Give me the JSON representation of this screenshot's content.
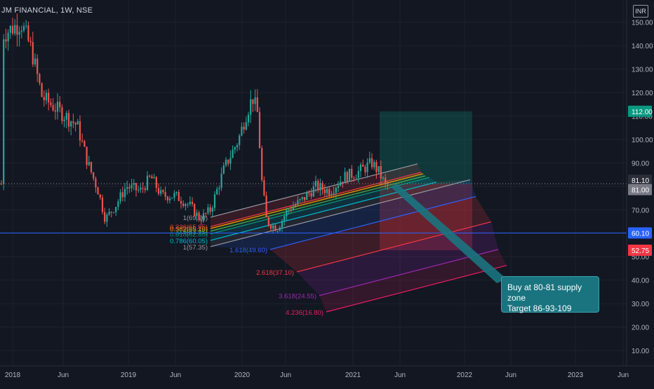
{
  "header": {
    "symbol": "JM FINANCIAL, 1W, NSE",
    "currency": "INR"
  },
  "chart_data": {
    "type": "candlestick",
    "y_ticks": [
      "150.00",
      "140.00",
      "130.00",
      "120.00",
      "110.00",
      "100.00",
      "90.00",
      "80.00",
      "70.00",
      "60.00",
      "50.00",
      "40.00",
      "30.00",
      "20.00",
      "10.00"
    ],
    "x_ticks": [
      "2018",
      "Jun",
      "2019",
      "Jun",
      "2020",
      "Jun",
      "2021",
      "Jun",
      "2022",
      "Jun",
      "2023",
      "Jun"
    ],
    "ylim": [
      4.3,
      158.5
    ],
    "grid": true,
    "price_labels": [
      {
        "value": 112.0,
        "text": "112.00",
        "color": "#089981"
      },
      {
        "value": 81.1,
        "text": "81.10",
        "color": "#2a2e39"
      },
      {
        "value": 81.0,
        "text": "81.00",
        "color": "#787b86"
      },
      {
        "value": 60.1,
        "text": "60.10",
        "color": "#2962ff"
      },
      {
        "value": 52.75,
        "text": "52.75",
        "color": "#f23645"
      }
    ],
    "horizontal_line": 60.1,
    "fib_levels": [
      {
        "label": "1(69.90)",
        "value": 69.9,
        "color": "#9598a1"
      },
      {
        "label": "0.236(65.95)",
        "value": 65.95,
        "color": "#f23645"
      },
      {
        "label": "0.382(65.10)",
        "value": 65.1,
        "color": "#ff9800"
      },
      {
        "label": "0.5(63.95)",
        "value": 63.95,
        "color": "#4caf50"
      },
      {
        "label": "0.618(62.80)",
        "value": 62.8,
        "color": "#089981"
      },
      {
        "label": "0.786(60.05)",
        "value": 60.05,
        "color": "#00bcd4"
      },
      {
        "label": "1(57.35)",
        "value": 57.35,
        "color": "#9598a1"
      },
      {
        "label": "1.618(49.60)",
        "value": 49.6,
        "color": "#2962ff"
      },
      {
        "label": "2.618(37.10)",
        "value": 37.1,
        "color": "#f23645"
      },
      {
        "label": "3.618(24.55)",
        "value": 24.55,
        "color": "#9c27b0"
      },
      {
        "label": "4.236(16.80)",
        "value": 16.8,
        "color": "#e91e63"
      }
    ],
    "trade": {
      "entry": 81.0,
      "target": 112.0,
      "stop": 52.75
    }
  },
  "annotation": {
    "line1": "Buy at 80-81 supply zone",
    "line2": "Target 86-93-109"
  }
}
